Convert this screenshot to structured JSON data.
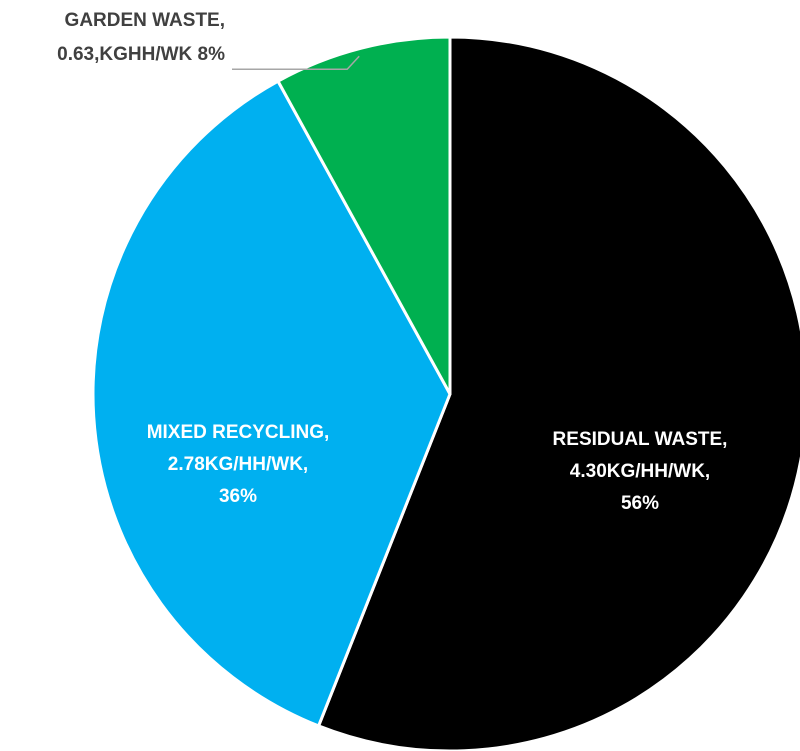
{
  "chart_data": {
    "type": "pie",
    "title": "",
    "slices": [
      {
        "name": "RESIDUAL WASTE",
        "amount": "4.30KG/HH/WK",
        "percent": 56,
        "color": "#000000",
        "label_color": "#ffffff",
        "label_lines": [
          "RESIDUAL WASTE,",
          "4.30KG/HH/WK,",
          "56%"
        ]
      },
      {
        "name": "MIXED RECYCLING",
        "amount": "2.78KG/HH/WK",
        "percent": 36,
        "color": "#00b0f0",
        "label_color": "#ffffff",
        "label_lines": [
          "MIXED RECYCLING,",
          "2.78KG/HH/WK,",
          "36%"
        ]
      },
      {
        "name": "GARDEN WASTE",
        "amount": "0.63,KGHH/WK",
        "percent": 8,
        "color": "#00b050",
        "label_color": "#404040",
        "label_lines": [
          "GARDEN WASTE,",
          "0.63,KGHH/WK 8%"
        ]
      }
    ],
    "start_angle": "12 o'clock",
    "direction": "clockwise",
    "slice_border_color": "#ffffff",
    "leader_line_color": "#a6a6a6"
  }
}
